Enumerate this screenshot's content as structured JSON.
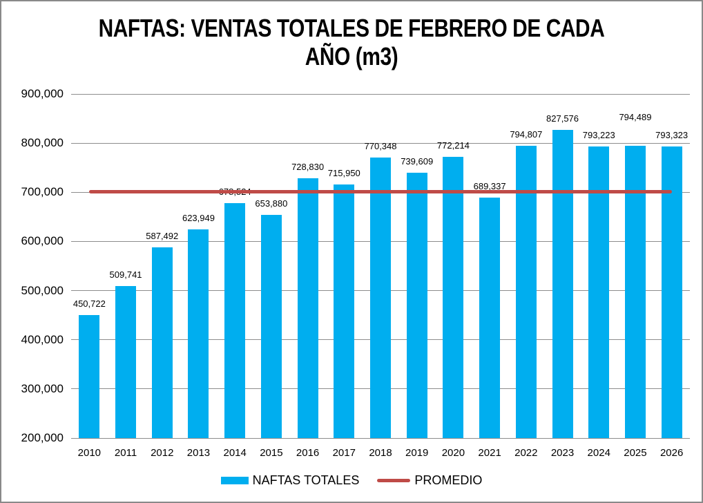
{
  "title": "NAFTAS: VENTAS TOTALES DE FEBRERO DE CADA AÑO (m3)",
  "colors": {
    "bar": "#00AEEF",
    "promedio_line": "#BF4B47",
    "gridline": "#8C8C8C",
    "frame_border": "#898989",
    "text": "#000000",
    "background": "#FFFFFF"
  },
  "legend": {
    "position": "bottom",
    "items": [
      {
        "label": "NAFTAS TOTALES",
        "swatch": "bar",
        "color": "#00AEEF"
      },
      {
        "label": "PROMEDIO",
        "swatch": "line",
        "color": "#BF4B47"
      }
    ]
  },
  "chart_data": {
    "type": "bar",
    "title": "NAFTAS: VENTAS TOTALES DE FEBRERO DE CADA AÑO (m3)",
    "categories": [
      "2010",
      "2011",
      "2012",
      "2013",
      "2014",
      "2015",
      "2016",
      "2017",
      "2018",
      "2019",
      "2020",
      "2021",
      "2022",
      "2023",
      "2024",
      "2025",
      "2026"
    ],
    "series": [
      {
        "name": "NAFTAS TOTALES",
        "type": "bar",
        "color": "#00AEEF",
        "values": [
          450722,
          509741,
          587492,
          623949,
          678524,
          653880,
          728830,
          715950,
          770348,
          739609,
          772214,
          689337,
          794807,
          827576,
          793223,
          794489,
          793323
        ]
      },
      {
        "name": "PROMEDIO",
        "type": "line",
        "color": "#BF4B47",
        "constant_value": 701413
      }
    ],
    "data_labels": [
      "450,722",
      "509,741",
      "587,492",
      "623,949",
      "678,524",
      "653,880",
      "728,830",
      "715,950",
      "770,348",
      "739,609",
      "772,214",
      "689,337",
      "794,807",
      "827,576",
      "793,223",
      "794,489",
      "793,323"
    ],
    "label_y_offsets": {
      "2025": 25
    },
    "xlabel": "",
    "ylabel": "",
    "ylim": [
      200000,
      900000
    ],
    "ytick_step": 100000,
    "ytick_labels": [
      "200,000",
      "300,000",
      "400,000",
      "500,000",
      "600,000",
      "700,000",
      "800,000",
      "900,000"
    ],
    "grid": true,
    "legend_position": "bottom"
  }
}
